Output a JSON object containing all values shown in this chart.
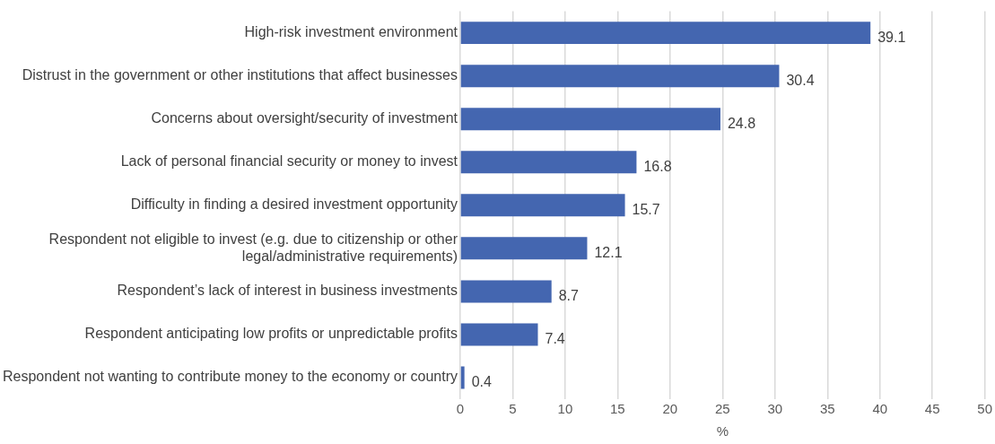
{
  "chart_data": {
    "type": "bar",
    "orientation": "horizontal",
    "xlabel": "%",
    "categories": [
      "High-risk investment environment",
      "Distrust in the government or other institutions that affect businesses",
      "Concerns about oversight/security of investment",
      "Lack of personal financial security or money to invest",
      "Difficulty in finding a desired investment opportunity",
      "Respondent not eligible to invest (e.g. due to citizenship or other legal/administrative requirements)",
      "Respondent’s lack of interest in business investments",
      "Respondent anticipating low profits or unpredictable profits",
      "Respondent not wanting to contribute money to the economy or country"
    ],
    "values": [
      39.1,
      30.4,
      24.8,
      16.8,
      15.7,
      12.1,
      8.7,
      7.4,
      0.4
    ],
    "color": "#4466b0",
    "xlim": [
      0,
      50
    ],
    "xticks": [
      0,
      5,
      10,
      15,
      20,
      25,
      30,
      35,
      40,
      45,
      50
    ],
    "grid": "x",
    "data_labels": true,
    "legend": false
  }
}
